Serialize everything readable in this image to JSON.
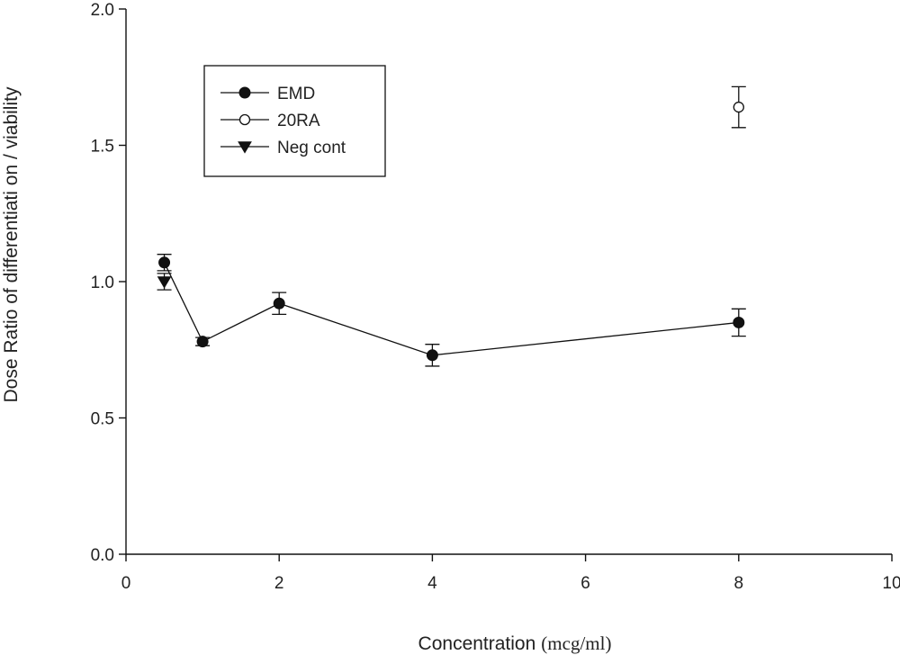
{
  "chart_data": {
    "type": "scatter",
    "xlabel": "Concentration",
    "xlabel_unit": "(mcg/ml)",
    "ylabel": "Dose Ratio of differentiati on / viability",
    "xlim": [
      0,
      10
    ],
    "ylim": [
      0,
      2.0
    ],
    "x_ticks": [
      0,
      2,
      4,
      6,
      8,
      10
    ],
    "x_tick_labels": [
      "0",
      "2",
      "4",
      "6",
      "8",
      "10"
    ],
    "y_ticks": [
      0,
      0.5,
      1.0,
      1.5,
      2.0
    ],
    "y_tick_labels": [
      "0.0",
      "0.5",
      "1.0",
      "1.5",
      "2.0"
    ],
    "grid": false,
    "legend_position": "top-left",
    "series": [
      {
        "name": "EMD",
        "marker": "filled-circle",
        "connected": true,
        "color": "#111111",
        "points": [
          {
            "x": 0.5,
            "y": 1.07,
            "err": 0.03
          },
          {
            "x": 1,
            "y": 0.78,
            "err": 0.015
          },
          {
            "x": 2,
            "y": 0.92,
            "err": 0.04
          },
          {
            "x": 4,
            "y": 0.73,
            "err": 0.04
          },
          {
            "x": 8,
            "y": 0.85,
            "err": 0.05
          }
        ]
      },
      {
        "name": "20RA",
        "marker": "open-circle",
        "connected": false,
        "color": "#111111",
        "points": [
          {
            "x": 8,
            "y": 1.64,
            "err": 0.075
          }
        ]
      },
      {
        "name": "Neg cont",
        "marker": "filled-triangle-down",
        "connected": false,
        "color": "#111111",
        "points": [
          {
            "x": 0.5,
            "y": 1.0,
            "err": 0.03
          }
        ]
      }
    ]
  }
}
